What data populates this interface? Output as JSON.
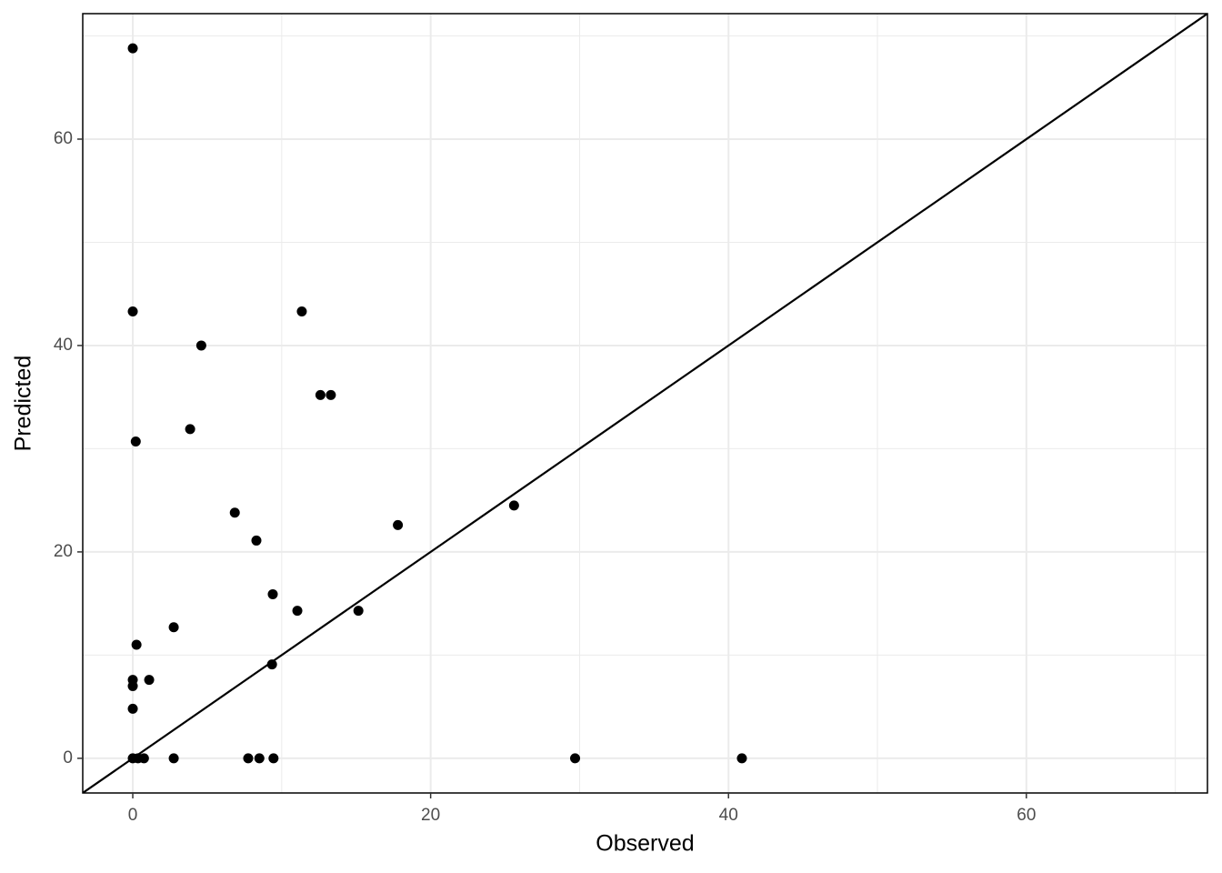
{
  "chart_data": {
    "type": "scatter",
    "x_label": "Observed",
    "y_label": "Predicted",
    "x": [
      0,
      0,
      11.35,
      4.6,
      12.6,
      13.3,
      3.85,
      0.2,
      6.85,
      25.6,
      17.8,
      8.3,
      9.4,
      11.05,
      15.15,
      2.75,
      0.25,
      9.35,
      0,
      1.1,
      0,
      0,
      0,
      0.35,
      0.75,
      2.75,
      7.75,
      8.5,
      9.45,
      29.7,
      40.9
    ],
    "values": [
      68.8,
      43.3,
      43.3,
      40.0,
      35.2,
      35.2,
      31.9,
      30.7,
      23.8,
      24.5,
      22.6,
      21.1,
      15.9,
      14.3,
      14.3,
      12.7,
      11.0,
      9.1,
      7.6,
      7.6,
      7.0,
      4.8,
      0,
      0,
      0,
      0,
      0,
      0,
      0,
      0,
      0
    ],
    "color": "#000000",
    "xlim": [
      -3.36,
      72.16
    ],
    "ylim": [
      -3.36,
      72.16
    ],
    "xticks": [
      0,
      20,
      40,
      60
    ],
    "yticks": [
      0,
      20,
      40,
      60
    ],
    "minor_xticks": [
      10,
      30,
      50,
      70
    ],
    "minor_yticks": [
      10,
      30,
      50,
      70
    ],
    "grid": true,
    "identity_line": true
  }
}
